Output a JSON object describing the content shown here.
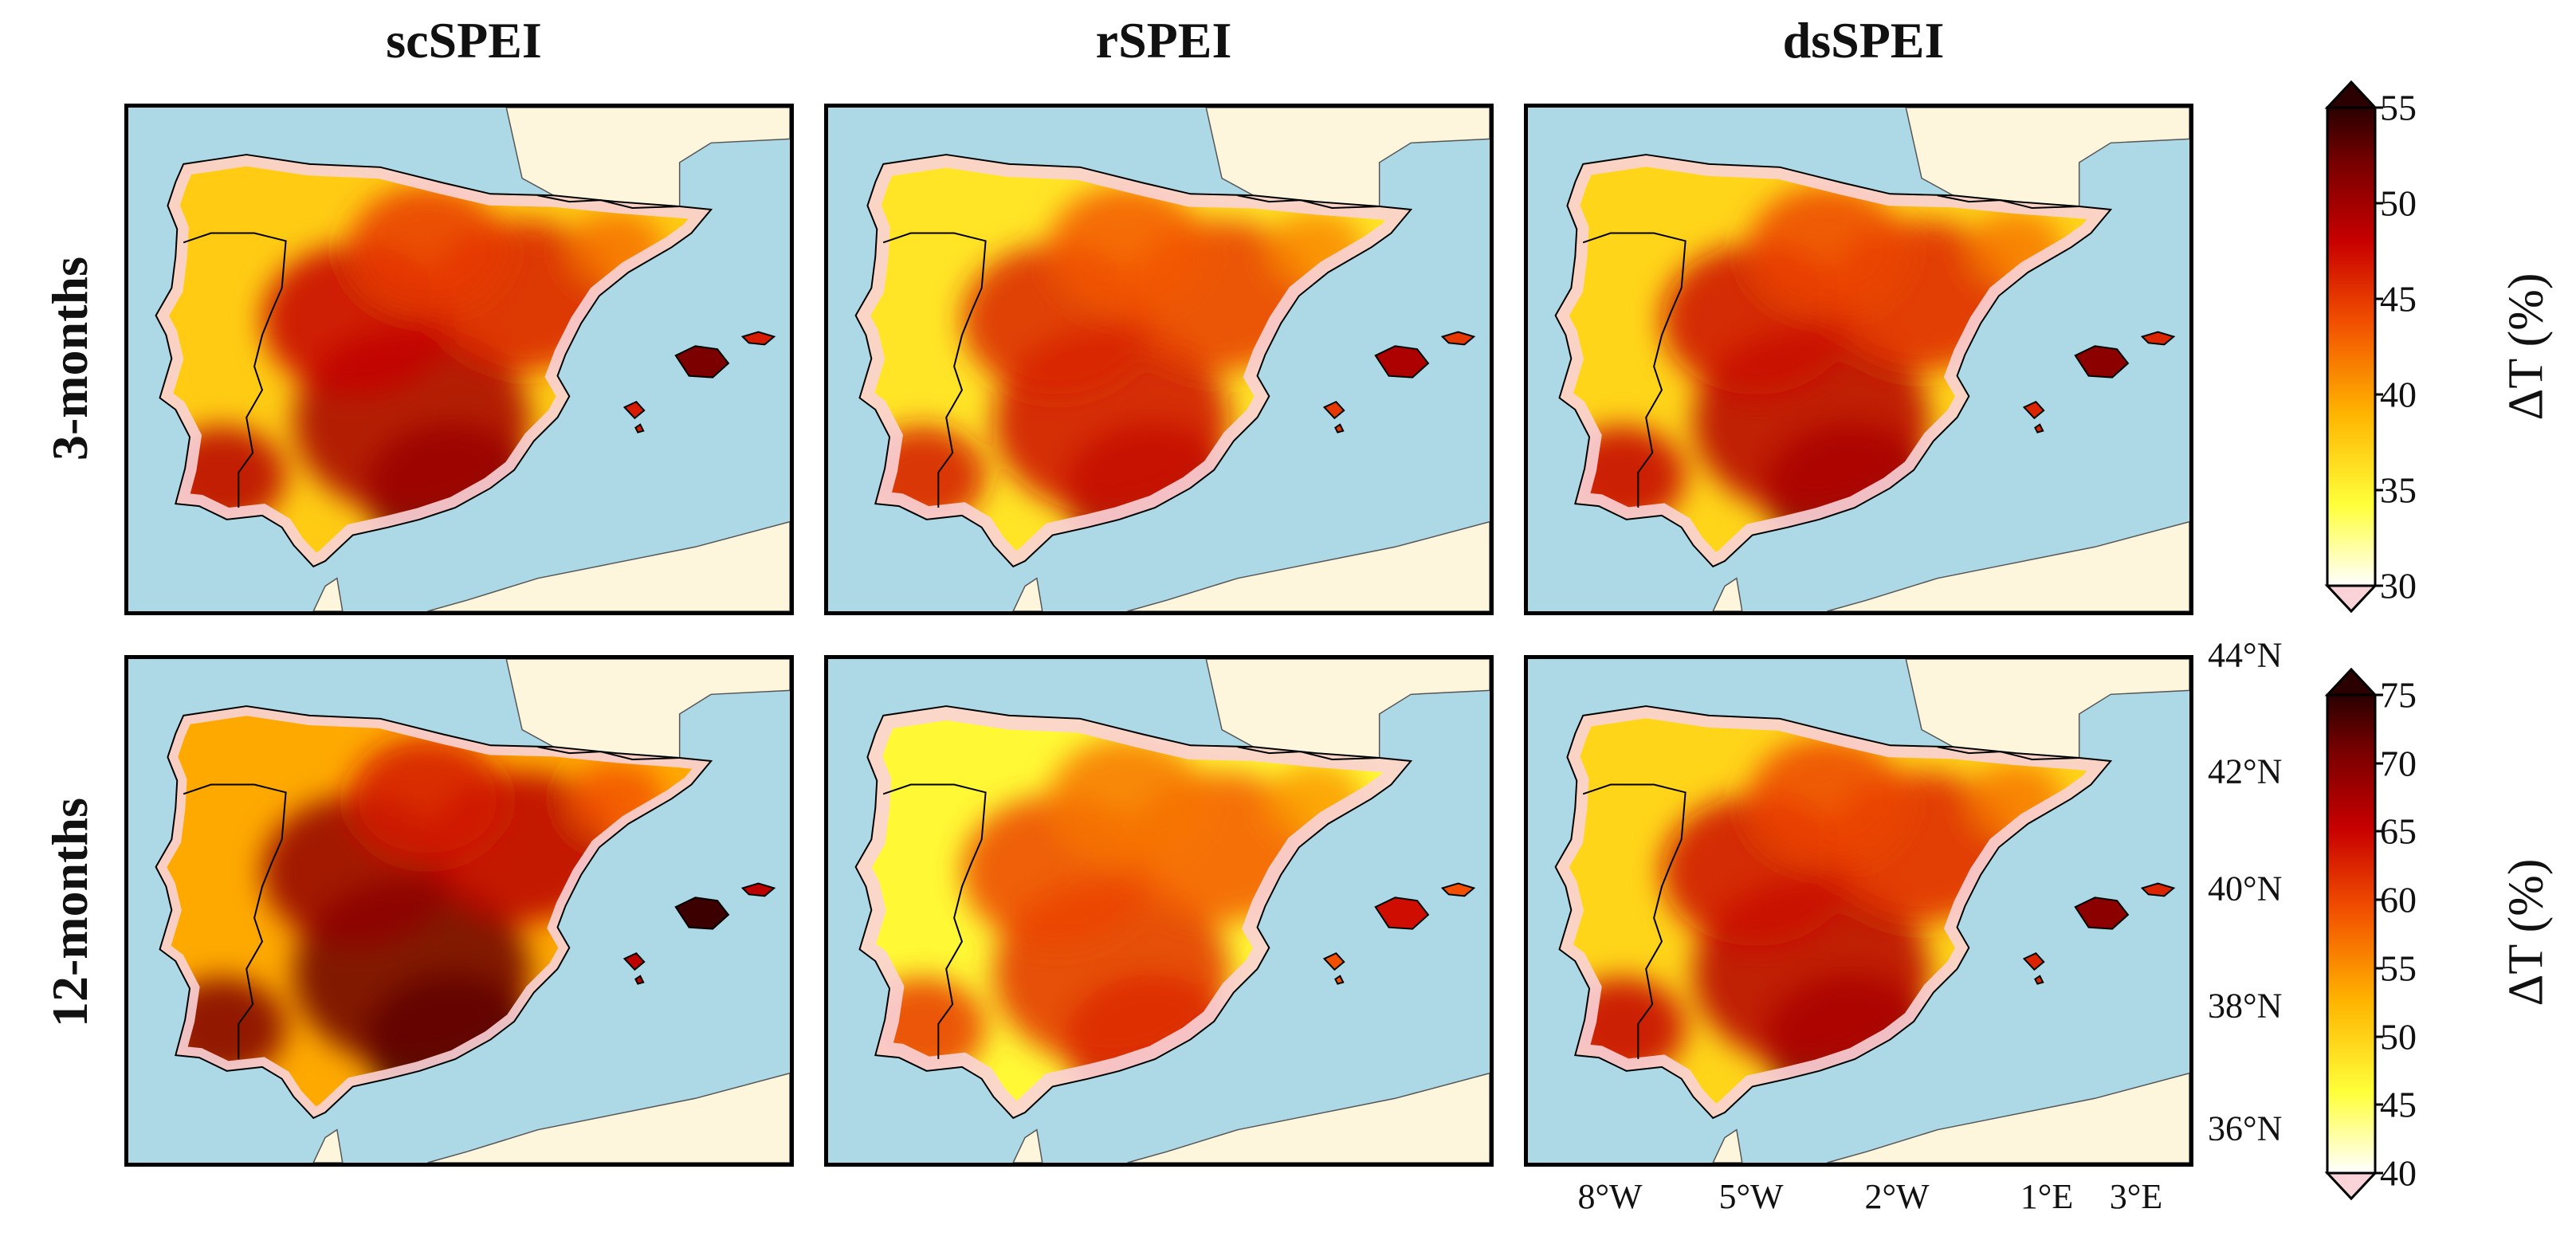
{
  "columns": [
    "scSPEI",
    "rSPEI",
    "dsSPEI"
  ],
  "rows": [
    "3-months",
    "12-months"
  ],
  "panels": [
    {
      "row": "3-months",
      "column": "scSPEI",
      "intensity": 0.62
    },
    {
      "row": "3-months",
      "column": "rSPEI",
      "intensity": 0.5
    },
    {
      "row": "3-months",
      "column": "dsSPEI",
      "intensity": 0.58
    },
    {
      "row": "12-months",
      "column": "scSPEI",
      "intensity": 0.78
    },
    {
      "row": "12-months",
      "column": "rSPEI",
      "intensity": 0.4
    },
    {
      "row": "12-months",
      "column": "dsSPEI",
      "intensity": 0.58
    }
  ],
  "lat_ticks": [
    "44°N",
    "42°N",
    "40°N",
    "38°N",
    "36°N"
  ],
  "lon_ticks": [
    "8°W",
    "5°W",
    "2°W",
    "1°E",
    "3°E"
  ],
  "colorbars": [
    {
      "label": "ΔT (%)",
      "ticks": [
        "55",
        "50",
        "45",
        "40",
        "35",
        "30"
      ],
      "min": 30,
      "max": 55
    },
    {
      "label": "ΔT (%)",
      "ticks": [
        "75",
        "70",
        "65",
        "60",
        "55",
        "50",
        "45",
        "40"
      ],
      "min": 40,
      "max": 75
    }
  ],
  "colors": {
    "sea": "#add8e6",
    "land_outside": "#fdf5dc",
    "below_range": "#f9d3d8",
    "colormap": [
      "#ffffff",
      "#ffff3a",
      "#ffb400",
      "#f25000",
      "#c80000",
      "#7a0000",
      "#2a0000"
    ]
  }
}
